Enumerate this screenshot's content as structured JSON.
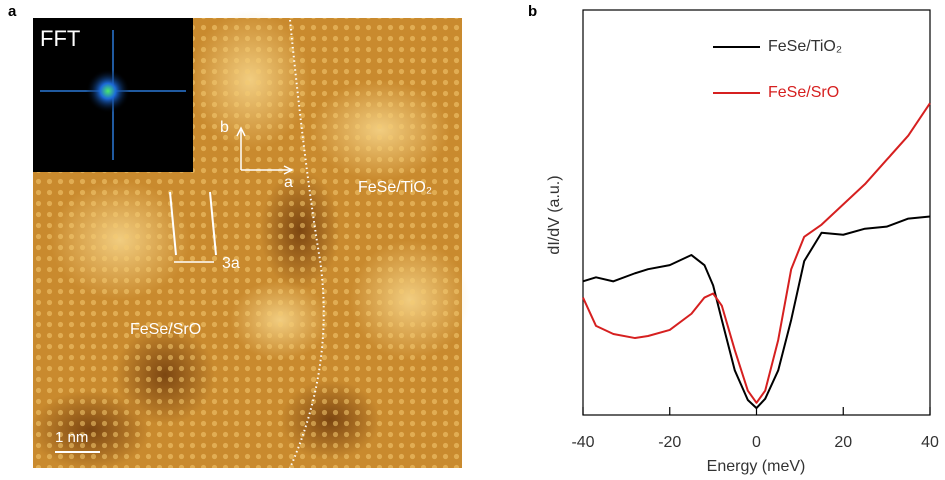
{
  "panel_a": {
    "label": "a",
    "inset_label": "FFT",
    "axis_b": "b",
    "axis_a": "a",
    "spacing": "3a",
    "region_right": "FeSe/TiO₂",
    "region_left": "FeSe/SrO",
    "scale_bar": "1 nm"
  },
  "chart_data": {
    "type": "line",
    "label": "b",
    "xlabel": "Energy (meV)",
    "ylabel": "dI/dV (a.u.)",
    "x": [
      -40,
      -37,
      -33,
      -28,
      -25,
      -20,
      -15,
      -12,
      -10,
      -8,
      -5,
      -2,
      0,
      2,
      5,
      8,
      11,
      15,
      20,
      25,
      30,
      35,
      40
    ],
    "series": [
      {
        "name": "FeSe/TiO₂",
        "color": "#000000",
        "values": [
          0.33,
          0.34,
          0.33,
          0.35,
          0.36,
          0.37,
          0.395,
          0.37,
          0.32,
          0.235,
          0.11,
          0.037,
          0.017,
          0.04,
          0.11,
          0.235,
          0.38,
          0.45,
          0.445,
          0.46,
          0.465,
          0.485,
          0.49
        ]
      },
      {
        "name": "FeSe/SrO",
        "color": "#d62020",
        "values": [
          0.29,
          0.22,
          0.2,
          0.19,
          0.195,
          0.21,
          0.25,
          0.29,
          0.3,
          0.27,
          0.16,
          0.06,
          0.03,
          0.06,
          0.185,
          0.36,
          0.44,
          0.47,
          0.52,
          0.57,
          0.63,
          0.69,
          0.77
        ]
      }
    ],
    "xlim": [
      -40,
      40
    ],
    "xticks": [
      -40,
      -20,
      0,
      20,
      40
    ],
    "ylim": [
      0,
      1
    ]
  }
}
